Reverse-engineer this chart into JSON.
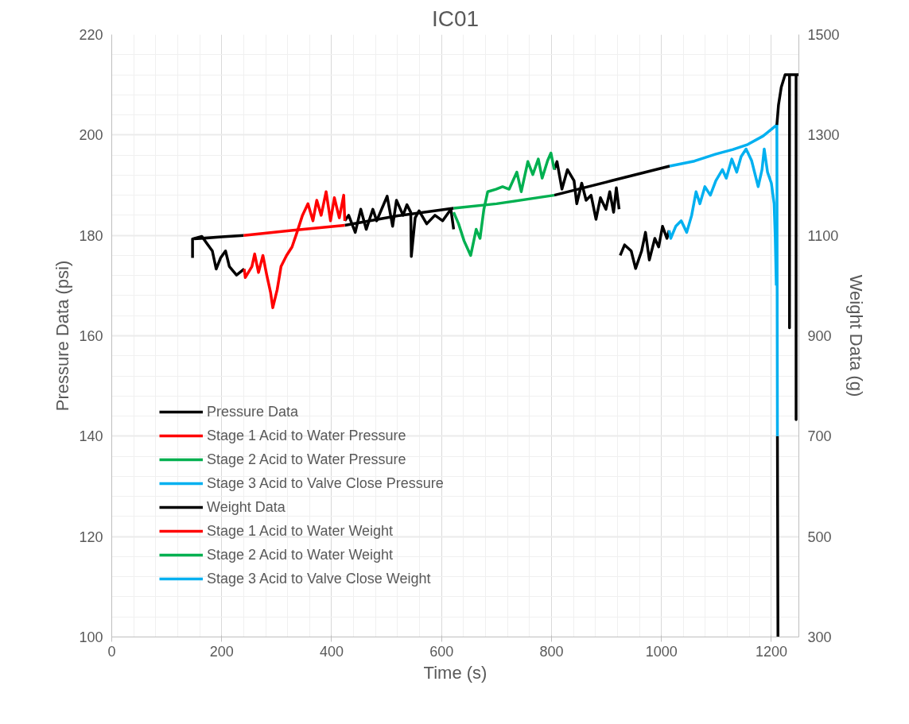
{
  "chart_data": {
    "type": "line",
    "title": "IC01",
    "xlabel": "Time (s)",
    "ylabel": "Pressure Data (psi)",
    "y2label": "Weight Data (g)",
    "xlim": [
      0,
      1250
    ],
    "xticks": [
      0,
      200,
      400,
      600,
      800,
      1000,
      1200
    ],
    "ylim": [
      100,
      220
    ],
    "yticks": [
      100,
      120,
      140,
      160,
      180,
      200,
      220
    ],
    "y2lim": [
      300,
      1500
    ],
    "y2ticks": [
      300,
      500,
      700,
      900,
      1100,
      1300,
      1500
    ],
    "grid": true,
    "legend": "bottom left",
    "marker": "none",
    "line_style": "solid",
    "series": [
      {
        "name": "Pressure Data",
        "color": "#000000",
        "x": [
          150,
          200,
          240,
          332,
          424,
          520,
          622,
          714,
          805,
          910,
          1015,
          1112,
          1211,
          1212
        ],
        "values": [
          179.3,
          179.7,
          180.0,
          null,
          182.0,
          183.9,
          185.4,
          null,
          188.0,
          190.9,
          193.8,
          null,
          140,
          100
        ]
      },
      {
        "name": "Stage 1 Acid to Water Pressure",
        "color": "#ff0000",
        "x": [
          240,
          330,
          424
        ],
        "values": [
          180.0,
          181.0,
          182.0
        ]
      },
      {
        "name": "Stage 2 Acid to Water Pressure",
        "color": "#00b050",
        "x": [
          622,
          700,
          805
        ],
        "values": [
          185.4,
          186.3,
          188.0
        ]
      },
      {
        "name": "Stage 3 Acid to Valve Close Pressure",
        "color": "#00b0f0",
        "x": [
          1015,
          1060,
          1099,
          1130,
          1157,
          1185,
          1210,
          1211
        ],
        "values": [
          193.8,
          194.8,
          196.2,
          197.1,
          198.1,
          199.8,
          202.0,
          140
        ]
      },
      {
        "name": "Weight Data",
        "color": "#000000",
        "axis": "y2",
        "x": [
          147,
          147,
          164,
          173,
          183,
          190,
          198,
          207,
          214,
          227,
          241,
          332,
          424,
          431,
          443,
          453,
          463,
          475,
          482,
          501,
          511,
          518,
          530,
          537,
          544,
          545,
          552,
          559,
          573,
          588,
          602,
          617,
          622,
          714,
          805,
          810,
          819,
          829,
          841,
          846,
          855,
          863,
          872,
          881,
          889,
          899,
          906,
          913,
          918,
          923,
          924,
          925,
          933,
          945,
          953,
          964,
          971,
          978,
          988,
          995,
          1002,
          1010,
          1014,
          1112,
          1210,
          1213,
          1218,
          1225,
          1233,
          1233,
          1233,
          1245,
          1245,
          1245,
          1250
        ],
        "values": [
          1055,
          1093,
          1098,
          1084,
          1069,
          1033,
          1055,
          1069,
          1038,
          1021,
          1033,
          null,
          1129,
          1140,
          1106,
          1152,
          1112,
          1152,
          1129,
          1178,
          1118,
          1170,
          1140,
          1161,
          1146,
          1058,
          1135,
          1149,
          1123,
          1140,
          1129,
          1152,
          1112,
          null,
          1231,
          1247,
          1192,
          1231,
          1209,
          1163,
          1204,
          1170,
          1180,
          1132,
          1175,
          1152,
          1187,
          1146,
          1195,
          1152,
          null,
          1060,
          1081,
          1069,
          1034,
          1069,
          1106,
          1051,
          1094,
          1077,
          1118,
          1094,
          1110,
          null,
          1320,
          1360,
          1395,
          1420,
          1420,
          916,
          1420,
          1420,
          733,
          1420,
          1420
        ]
      },
      {
        "name": "Stage 1 Acid to Water Weight",
        "color": "#ff0000",
        "axis": "y2",
        "x": [
          241,
          243,
          255,
          260,
          267,
          275,
          282,
          289,
          293,
          301,
          308,
          318,
          328,
          337,
          347,
          357,
          366,
          373,
          381,
          390,
          398,
          405,
          414,
          422,
          424
        ],
        "values": [
          1033,
          1016,
          1038,
          1063,
          1026,
          1060,
          1021,
          986,
          956,
          992,
          1038,
          1060,
          1077,
          1106,
          1140,
          1163,
          1129,
          1170,
          1140,
          1187,
          1129,
          1175,
          1135,
          1180,
          1129
        ]
      },
      {
        "name": "Stage 2 Acid to Water Weight",
        "color": "#00b050",
        "axis": "y2",
        "x": [
          622,
          631,
          641,
          653,
          663,
          670,
          677,
          684,
          699,
          711,
          723,
          737,
          745,
          757,
          766,
          776,
          783,
          793,
          799,
          805
        ],
        "values": [
          1146,
          1123,
          1089,
          1060,
          1112,
          1094,
          1152,
          1187,
          1192,
          1197,
          1192,
          1226,
          1187,
          1247,
          1221,
          1252,
          1214,
          1249,
          1264,
          1231
        ]
      },
      {
        "name": "Stage 3 Acid to Valve Close Weight",
        "color": "#00b0f0",
        "axis": "y2",
        "x": [
          1014,
          1017,
          1026,
          1036,
          1046,
          1055,
          1063,
          1070,
          1079,
          1089,
          1099,
          1111,
          1118,
          1128,
          1137,
          1145,
          1154,
          1164,
          1176,
          1183,
          1187,
          1193,
          1200,
          1205,
          1207,
          1209
        ],
        "values": [
          1110,
          1094,
          1118,
          1129,
          1106,
          1140,
          1187,
          1163,
          1197,
          1180,
          1209,
          1231,
          1214,
          1252,
          1226,
          1257,
          1272,
          1249,
          1197,
          1231,
          1272,
          1226,
          1204,
          1163,
          1100,
          1000
        ]
      }
    ]
  }
}
